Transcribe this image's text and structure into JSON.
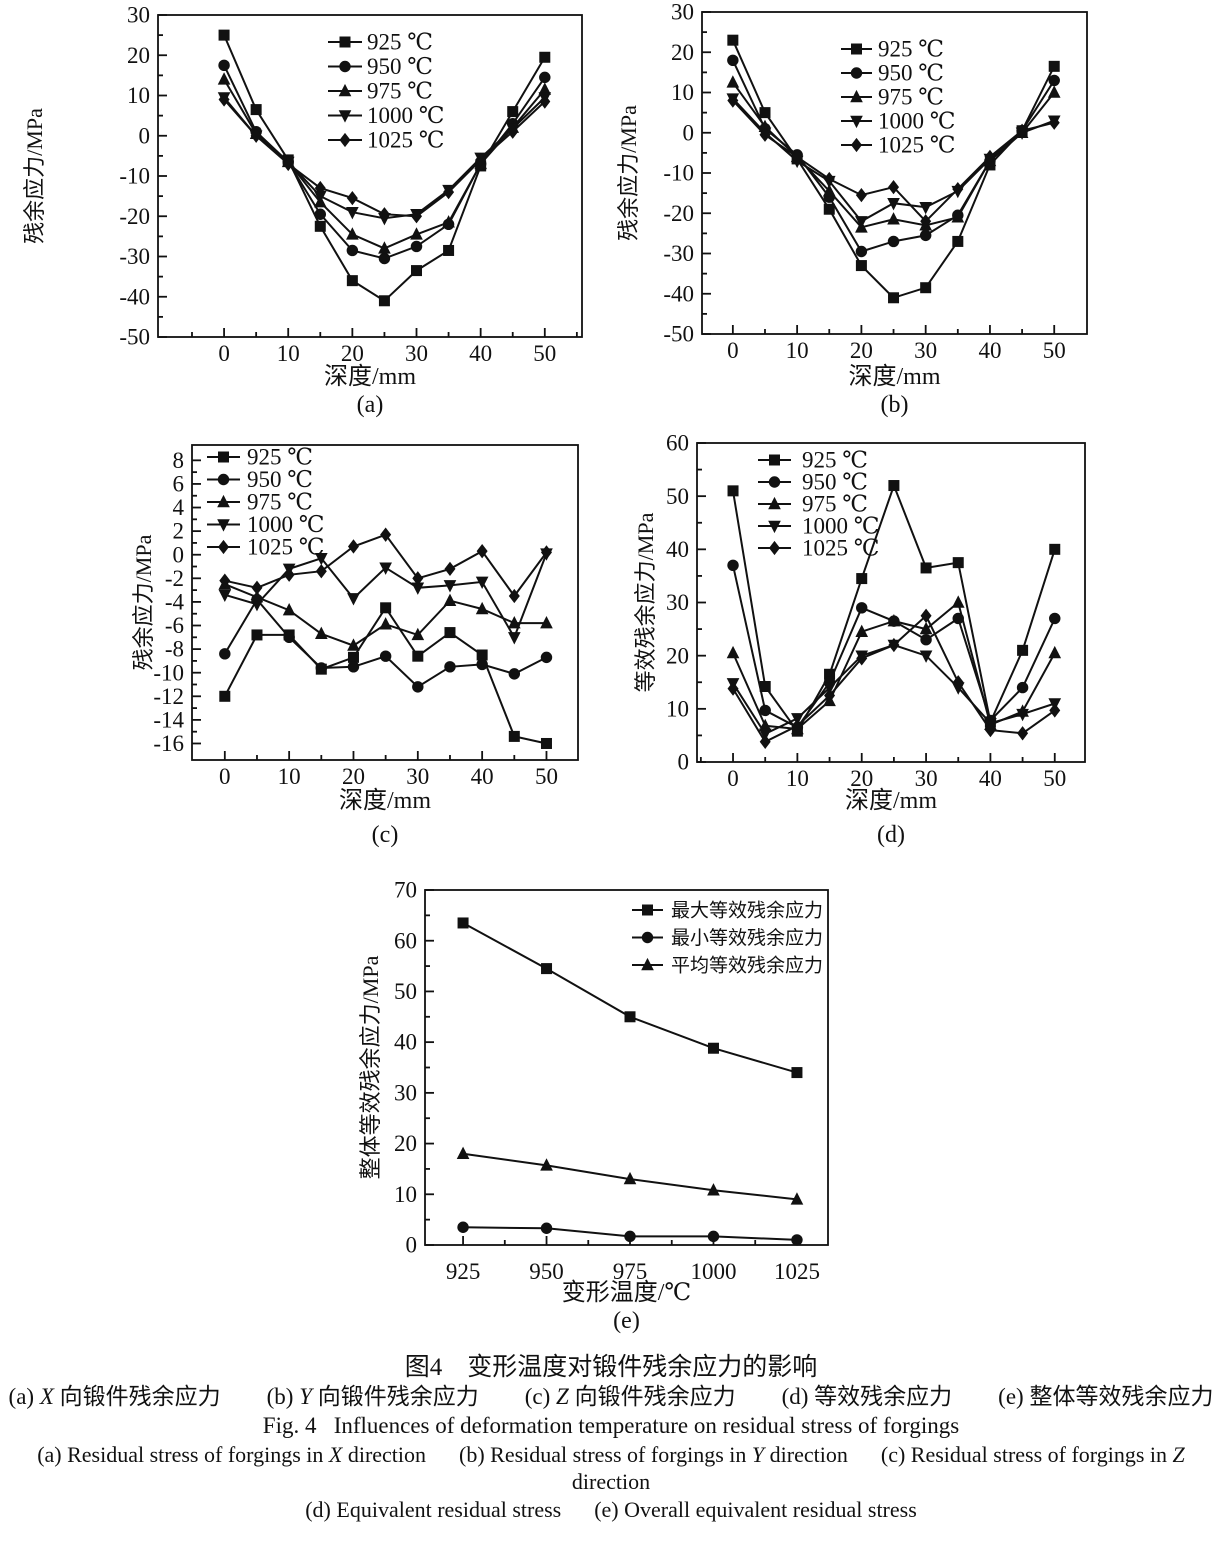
{
  "figure": {
    "caption_zh_title": "图4　变形温度对锻件残余应力的影响",
    "caption_zh_sub": [
      {
        "t": "(a) "
      },
      {
        "t": "X",
        "i": true
      },
      {
        "t": " 向锻件残余应力　　(b) "
      },
      {
        "t": "Y",
        "i": true
      },
      {
        "t": " 向锻件残余应力　　(c) "
      },
      {
        "t": "Z",
        "i": true
      },
      {
        "t": " 向锻件残余应力　　(d) 等效残余应力　　(e) 整体等效残余应力"
      }
    ],
    "caption_en_title": "Fig. 4   Influences of deformation temperature on residual stress of forgings",
    "caption_en_sub1": [
      {
        "t": "(a) Residual stress of forgings in "
      },
      {
        "t": "X",
        "i": true
      },
      {
        "t": " direction      (b) Residual stress of forgings in "
      },
      {
        "t": "Y",
        "i": true
      },
      {
        "t": " direction      (c) Residual stress of forgings in "
      },
      {
        "t": "Z",
        "i": true
      },
      {
        "t": " direction"
      }
    ],
    "caption_en_sub2": "(d) Equivalent residual stress      (e) Overall equivalent residual stress"
  },
  "colors": {
    "ink": "#111111",
    "background": "#ffffff"
  },
  "chart_data": [
    {
      "id": "a",
      "label": "(a)",
      "type": "line",
      "xlabel": "深度/mm",
      "ylabel": "残余应力/MPa",
      "x": [
        0,
        5,
        10,
        15,
        20,
        25,
        30,
        35,
        40,
        45,
        50
      ],
      "xticks": [
        0,
        10,
        20,
        30,
        40,
        50
      ],
      "yticks": [
        30,
        20,
        10,
        0,
        -10,
        -20,
        -30,
        -40,
        -50
      ],
      "xlim": [
        -10.3,
        55.8
      ],
      "ylim": [
        -50,
        30
      ],
      "grid": false,
      "legend_pos": "top-right",
      "series": [
        {
          "name": "925 ℃",
          "marker": "square",
          "values": [
            25,
            6.5,
            -6,
            -22.5,
            -36,
            -41,
            -33.5,
            -28.5,
            -7.5,
            6,
            19.5
          ]
        },
        {
          "name": "950 ℃",
          "marker": "circle",
          "values": [
            17.5,
            1,
            -6.5,
            -19.5,
            -28.5,
            -30.5,
            -27.5,
            -22,
            -7,
            3,
            14.5
          ]
        },
        {
          "name": "975 ℃",
          "marker": "triangle-up",
          "values": [
            14,
            0.5,
            -6.5,
            -16.5,
            -24.5,
            -28,
            -24.5,
            -21.5,
            -7,
            2,
            11.5
          ]
        },
        {
          "name": "1000 ℃",
          "marker": "triangle-down",
          "values": [
            9.5,
            0,
            -6.5,
            -15,
            -19,
            -20.5,
            -19.5,
            -13.5,
            -5.5,
            1.8,
            9.5
          ]
        },
        {
          "name": "1025 ℃",
          "marker": "diamond",
          "values": [
            9,
            0,
            -7,
            -13,
            -15.5,
            -19.5,
            -20,
            -14,
            -6,
            1,
            8.5
          ]
        }
      ]
    },
    {
      "id": "b",
      "label": "(b)",
      "type": "line",
      "xlabel": "深度/mm",
      "ylabel": "残余应力/MPa",
      "x": [
        0,
        5,
        10,
        15,
        20,
        25,
        30,
        35,
        40,
        45,
        50
      ],
      "xticks": [
        0,
        10,
        20,
        30,
        40,
        50
      ],
      "yticks": [
        30,
        20,
        10,
        0,
        -10,
        -20,
        -30,
        -40,
        -50
      ],
      "xlim": [
        -4.8,
        55.1
      ],
      "ylim": [
        -50,
        30
      ],
      "grid": false,
      "legend_pos": "top-right",
      "series": [
        {
          "name": "925 ℃",
          "marker": "square",
          "values": [
            23,
            5,
            -6.5,
            -19,
            -33,
            -41,
            -38.5,
            -27,
            -8,
            0.5,
            16.5
          ]
        },
        {
          "name": "950 ℃",
          "marker": "circle",
          "values": [
            18,
            1,
            -5.5,
            -16,
            -29.5,
            -27,
            -25.5,
            -20.5,
            -7,
            0.5,
            13
          ]
        },
        {
          "name": "975 ℃",
          "marker": "triangle-up",
          "values": [
            12.5,
            1.5,
            -6,
            -14.5,
            -23.5,
            -21.5,
            -23,
            -21,
            -7,
            0,
            10
          ]
        },
        {
          "name": "1000 ℃",
          "marker": "triangle-down",
          "values": [
            8.5,
            0,
            -7,
            -12,
            -22,
            -17.5,
            -18.5,
            -14.5,
            -6.5,
            0,
            3
          ]
        },
        {
          "name": "1025 ℃",
          "marker": "diamond",
          "values": [
            8,
            -0.5,
            -6,
            -11.5,
            -15.5,
            -13.5,
            -22,
            -14,
            -6,
            0.5,
            2.5
          ]
        }
      ]
    },
    {
      "id": "c",
      "label": "(c)",
      "type": "line",
      "xlabel": "深度/mm",
      "ylabel": "残余应力/MPa",
      "x": [
        0,
        5,
        10,
        15,
        20,
        25,
        30,
        35,
        40,
        45,
        50
      ],
      "xticks": [
        0,
        10,
        20,
        30,
        40,
        50
      ],
      "yticks": [
        8,
        6,
        4,
        2,
        0,
        -2,
        -4,
        -6,
        -8,
        -10,
        -12,
        -14,
        -16
      ],
      "xlim": [
        -5.1,
        54.9
      ],
      "ylim": [
        -17.4,
        9.3
      ],
      "grid": false,
      "legend_pos": "top-left",
      "series": [
        {
          "name": "925 ℃",
          "marker": "square",
          "values": [
            -12,
            -6.8,
            -6.8,
            -9.7,
            -8.7,
            -4.5,
            -8.6,
            -6.6,
            -8.5,
            -15.4,
            -16
          ]
        },
        {
          "name": "950 ℃",
          "marker": "circle",
          "values": [
            -8.4,
            -3.8,
            -7,
            -9.6,
            -9.5,
            -8.6,
            -11.2,
            -9.5,
            -9.3,
            -10.1,
            -8.7
          ]
        },
        {
          "name": "975 ℃",
          "marker": "triangle-up",
          "values": [
            -2.5,
            -3.6,
            -4.7,
            -6.7,
            -7.7,
            -5.9,
            -6.8,
            -3.9,
            -4.6,
            -5.8,
            -5.8
          ]
        },
        {
          "name": "1000 ℃",
          "marker": "triangle-down",
          "values": [
            -3.4,
            -4.2,
            -1.2,
            -0.3,
            -3.7,
            -1.1,
            -2.8,
            -2.6,
            -2.3,
            -7,
            0.1
          ]
        },
        {
          "name": "1025 ℃",
          "marker": "diamond",
          "values": [
            -2.2,
            -2.8,
            -1.7,
            -1.4,
            0.7,
            1.7,
            -2,
            -1.2,
            0.3,
            -3.5,
            0.2
          ]
        }
      ]
    },
    {
      "id": "d",
      "label": "(d)",
      "type": "line",
      "xlabel": "深度/mm",
      "ylabel": "等效残余应力/MPa",
      "x": [
        0,
        5,
        10,
        15,
        20,
        25,
        30,
        35,
        40,
        45,
        50
      ],
      "xticks": [
        0,
        10,
        20,
        30,
        40,
        50
      ],
      "yticks": [
        60,
        50,
        40,
        30,
        20,
        10,
        0
      ],
      "xlim": [
        -5.6,
        54.7
      ],
      "ylim": [
        0,
        60
      ],
      "grid": false,
      "legend_pos": "top-left",
      "series": [
        {
          "name": "925 ℃",
          "marker": "square",
          "values": [
            51,
            14.2,
            5.8,
            16.5,
            34.5,
            52,
            36.5,
            37.5,
            7.5,
            21,
            40
          ]
        },
        {
          "name": "950 ℃",
          "marker": "circle",
          "values": [
            37,
            9.7,
            6.5,
            15,
            29,
            26.5,
            23,
            27,
            7.8,
            14,
            27
          ]
        },
        {
          "name": "975 ℃",
          "marker": "triangle-up",
          "values": [
            20.5,
            6.8,
            6.2,
            11.5,
            24.5,
            26.5,
            25,
            30,
            7,
            9.5,
            20.5
          ]
        },
        {
          "name": "1000 ℃",
          "marker": "triangle-down",
          "values": [
            14.8,
            5.3,
            8.2,
            14,
            20,
            22,
            20,
            14,
            7.3,
            9,
            11
          ]
        },
        {
          "name": "1025 ℃",
          "marker": "diamond",
          "values": [
            13.8,
            3.8,
            6.8,
            12.5,
            19.5,
            22,
            27.5,
            15,
            6,
            5.4,
            9.7
          ]
        }
      ]
    },
    {
      "id": "e",
      "label": "(e)",
      "type": "line",
      "xlabel": "变形温度/℃",
      "ylabel": "整体等效残余应力/MPa",
      "x": [
        925,
        950,
        975,
        1000,
        1025
      ],
      "xticks": [
        925,
        950,
        975,
        1000,
        1025
      ],
      "yticks": [
        70,
        60,
        50,
        40,
        30,
        20,
        10,
        0
      ],
      "xlim": [
        913.6,
        1034.3
      ],
      "ylim": [
        0,
        70
      ],
      "grid": false,
      "legend_pos": "top-right",
      "series": [
        {
          "name": "最大等效残余应力",
          "marker": "square",
          "values": [
            63.5,
            54.5,
            45,
            38.8,
            34
          ]
        },
        {
          "name": "最小等效残余应力",
          "marker": "circle",
          "values": [
            3.5,
            3.3,
            1.7,
            1.7,
            1
          ]
        },
        {
          "name": "平均等效残余应力",
          "marker": "triangle-up",
          "values": [
            18,
            15.7,
            13,
            10.8,
            9
          ]
        }
      ]
    }
  ]
}
